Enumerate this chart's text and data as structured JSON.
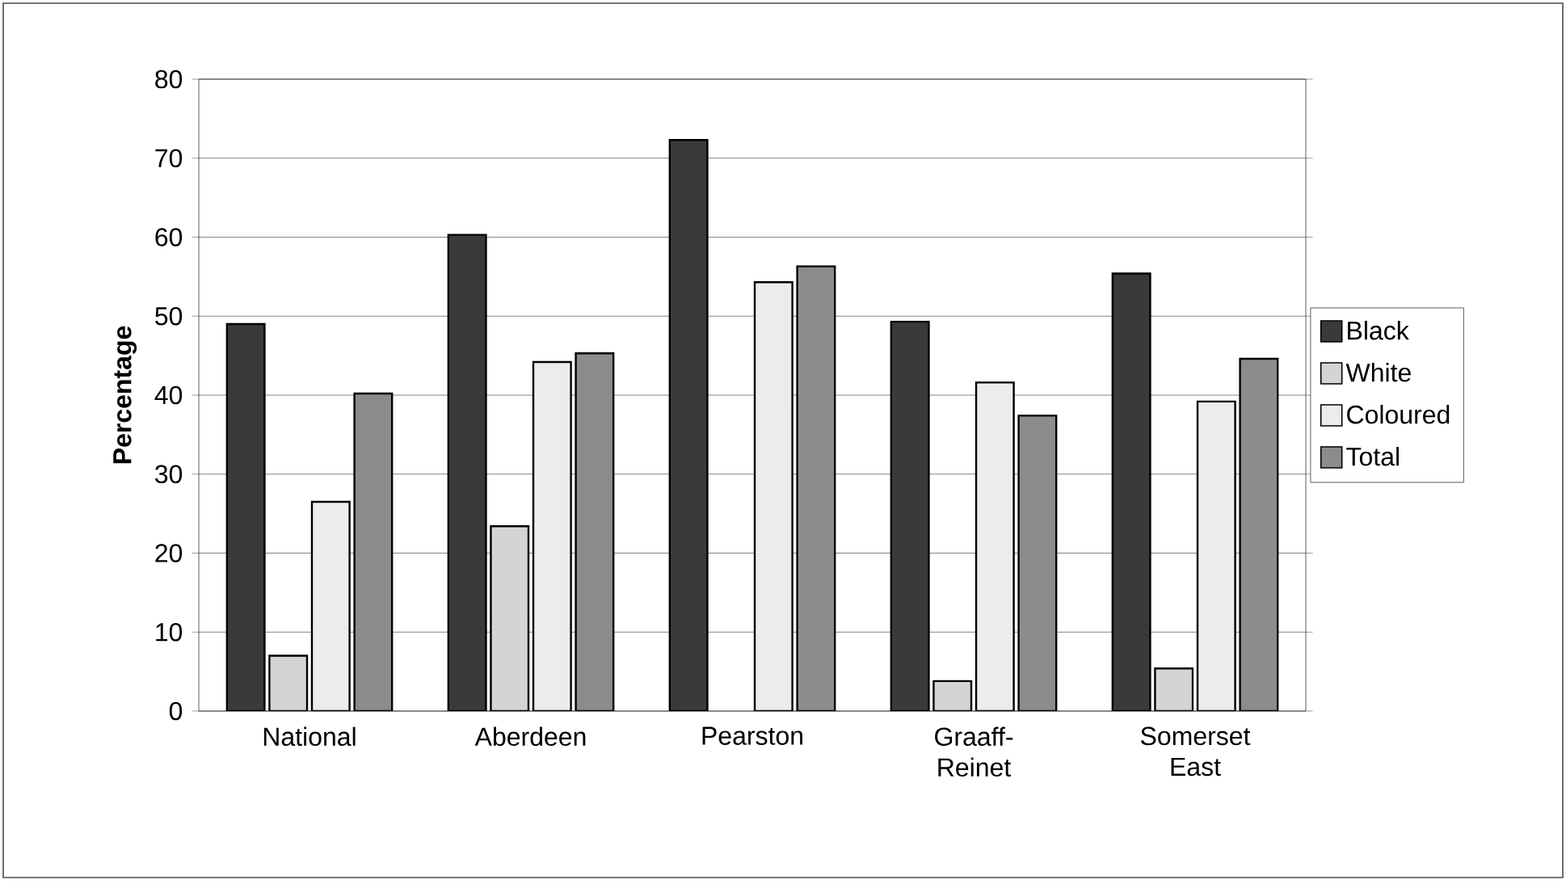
{
  "chart_data": {
    "type": "bar",
    "ylabel": "Percentage",
    "categories": [
      "National",
      "Aberdeen",
      "Pearston",
      "Graaff-Reinet",
      "Somerset East"
    ],
    "series": [
      {
        "name": "Black",
        "color": "#3a3a3a",
        "values": [
          49.0,
          60.3,
          72.3,
          49.3,
          55.4
        ]
      },
      {
        "name": "White",
        "color": "#d4d4d4",
        "values": [
          7.0,
          23.4,
          null,
          3.8,
          5.4
        ]
      },
      {
        "name": "Coloured",
        "color": "#ececec",
        "values": [
          26.5,
          44.2,
          54.3,
          41.6,
          39.2
        ]
      },
      {
        "name": "Total",
        "color": "#8c8c8c",
        "values": [
          40.2,
          45.3,
          56.3,
          37.4,
          44.6
        ]
      }
    ],
    "ylim": [
      0,
      80
    ],
    "yticks": [
      0,
      10,
      20,
      30,
      40,
      50,
      60,
      70,
      80
    ],
    "grid": "y",
    "legend": "right"
  }
}
